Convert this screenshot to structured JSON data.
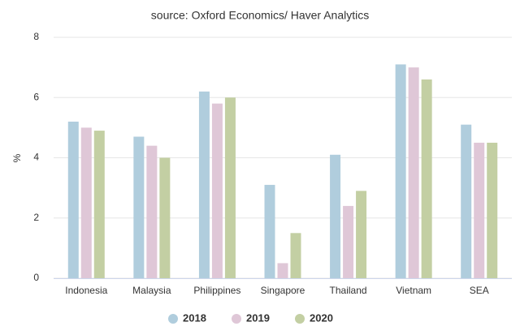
{
  "chart_data": {
    "type": "bar",
    "title": "source: Oxford Economics/ Haver Analytics",
    "y_label": "%",
    "categories": [
      "Indonesia",
      "Malaysia",
      "Philippines",
      "Singapore",
      "Thailand",
      "Vietnam",
      "SEA"
    ],
    "series": [
      {
        "name": "2018",
        "color": "#b0cddd",
        "values": [
          5.2,
          4.7,
          6.2,
          3.1,
          4.1,
          7.1,
          5.1
        ]
      },
      {
        "name": "2019",
        "color": "#dfc7d7",
        "values": [
          5.0,
          4.4,
          5.8,
          0.5,
          2.4,
          7.0,
          4.5
        ]
      },
      {
        "name": "2020",
        "color": "#c3cfa3",
        "values": [
          4.9,
          4.0,
          6.0,
          1.5,
          2.9,
          6.6,
          4.5
        ]
      }
    ],
    "ylim": [
      0,
      8
    ],
    "yticks": [
      0,
      2,
      4,
      6,
      8
    ],
    "grid": true
  }
}
